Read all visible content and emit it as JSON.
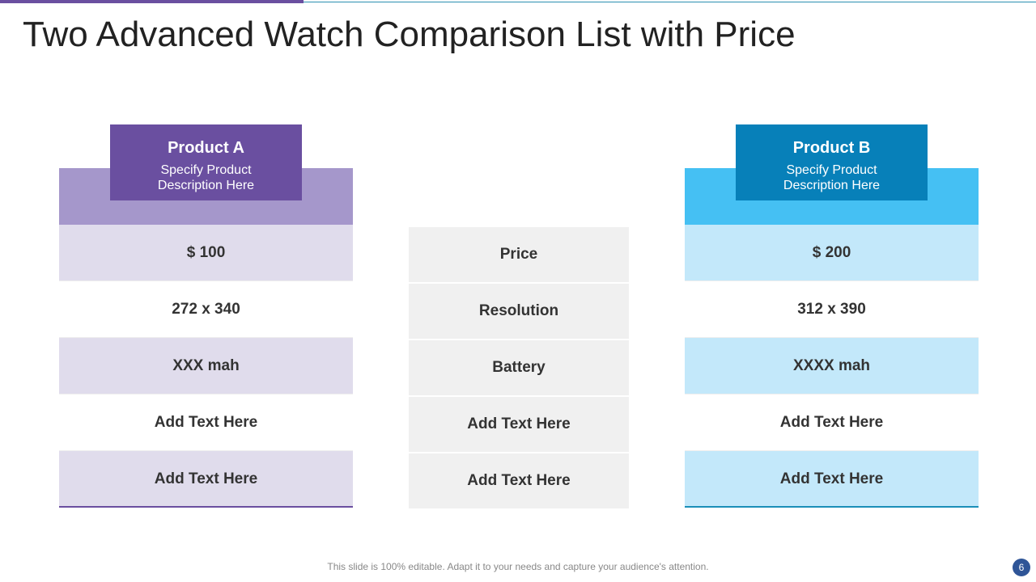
{
  "title": "Two Advanced Watch Comparison List with Price",
  "products": [
    {
      "name": "Product A",
      "description": "Specify Product Description Here",
      "values": [
        "$ 100",
        "272 x 340",
        "XXX mah",
        "Add Text Here",
        "Add Text Here"
      ]
    },
    {
      "name": "Product B",
      "description": "Specify Product Description Here",
      "values": [
        "$ 200",
        "312 x 390",
        "XXXX mah",
        "Add Text Here",
        "Add Text Here"
      ]
    }
  ],
  "features": [
    "Price",
    "Resolution",
    "Battery",
    "Add Text Here",
    "Add Text Here"
  ],
  "footer": "This slide is 100% editable. Adapt it to your needs and capture your audience's attention.",
  "page_number": "6"
}
